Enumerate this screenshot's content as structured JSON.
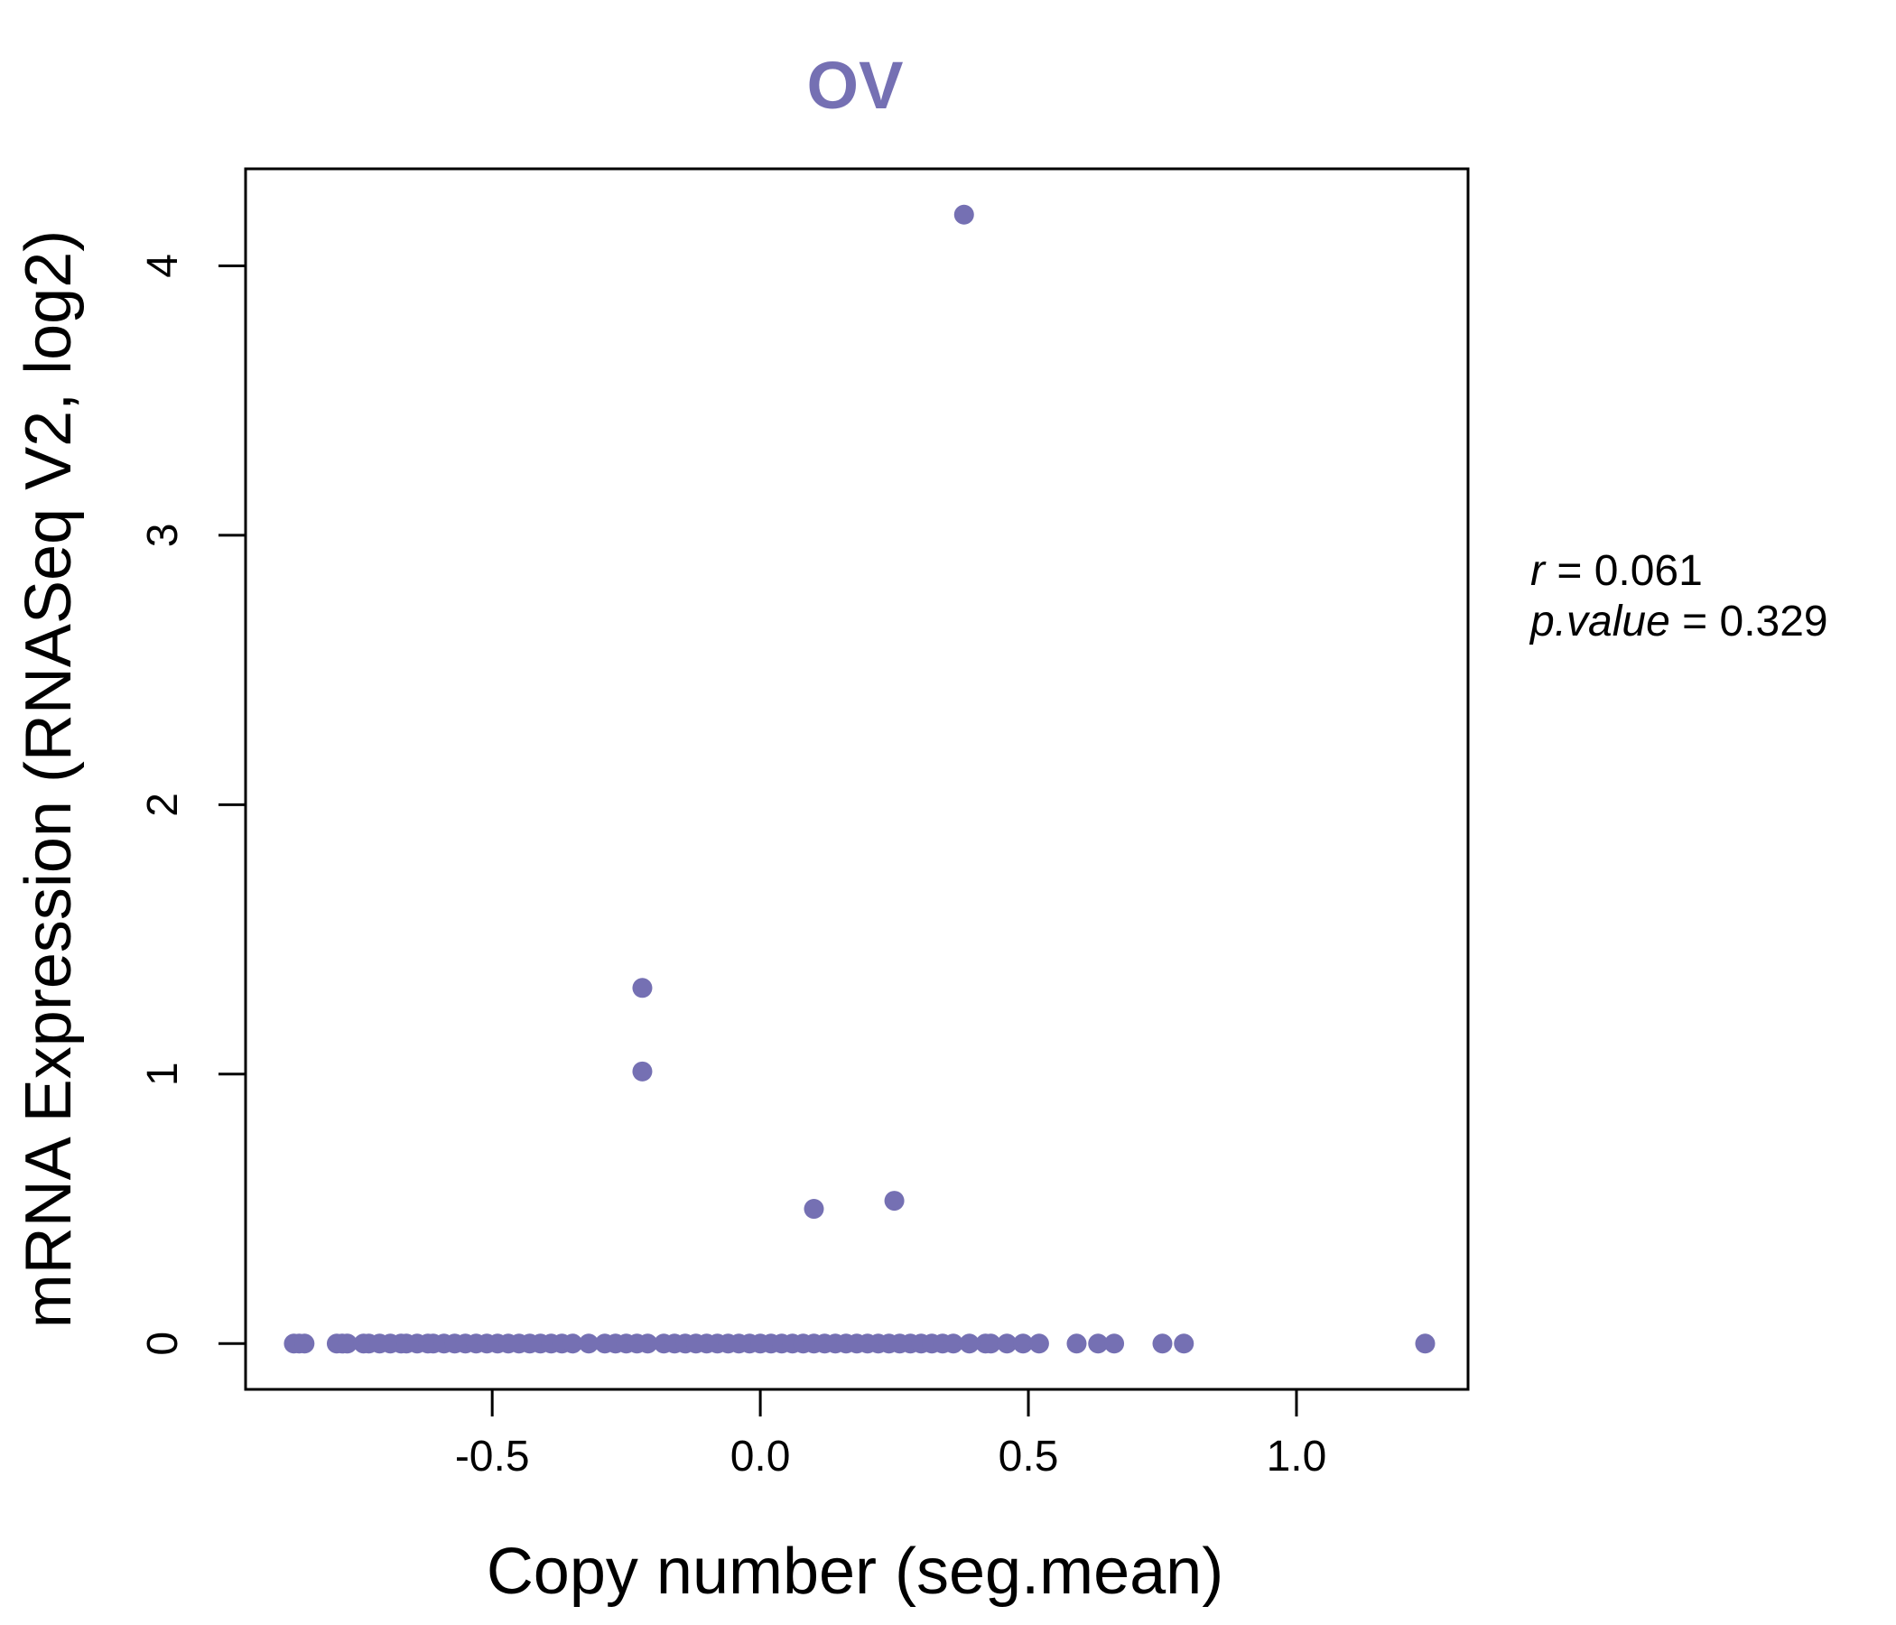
{
  "chart_data": {
    "type": "scatter",
    "title": "OV",
    "xlabel": "Copy number (seg.mean)",
    "ylabel": "mRNA Expression (RNASeq V2, log2)",
    "xlim": [
      -0.96,
      1.32
    ],
    "ylim": [
      -0.17,
      4.36
    ],
    "x_ticks": [
      -0.5,
      0.0,
      0.5,
      1.0
    ],
    "x_tick_labels": [
      "-0.5",
      "0.0",
      "0.5",
      "1.0"
    ],
    "y_ticks": [
      0,
      1,
      2,
      3,
      4
    ],
    "y_tick_labels": [
      "0",
      "1",
      "2",
      "3",
      "4"
    ],
    "grid": false,
    "color": "#7570b3",
    "stats": {
      "r_symbol": "r",
      "r_value": "0.061",
      "p_symbol": "p.value",
      "p_value": "0.329",
      "equals": "="
    },
    "points": [
      [
        0.38,
        4.19
      ],
      [
        -0.22,
        1.32
      ],
      [
        -0.22,
        1.01
      ],
      [
        0.1,
        0.5
      ],
      [
        0.25,
        0.53
      ],
      [
        -0.87,
        0
      ],
      [
        -0.86,
        0
      ],
      [
        -0.85,
        0
      ],
      [
        -0.79,
        0
      ],
      [
        -0.78,
        0
      ],
      [
        -0.77,
        0
      ],
      [
        -0.74,
        0
      ],
      [
        -0.73,
        0
      ],
      [
        -0.71,
        0
      ],
      [
        -0.69,
        0
      ],
      [
        -0.67,
        0
      ],
      [
        -0.66,
        0
      ],
      [
        -0.64,
        0
      ],
      [
        -0.62,
        0
      ],
      [
        -0.61,
        0
      ],
      [
        -0.59,
        0
      ],
      [
        -0.57,
        0
      ],
      [
        -0.55,
        0
      ],
      [
        -0.53,
        0
      ],
      [
        -0.51,
        0
      ],
      [
        -0.49,
        0
      ],
      [
        -0.47,
        0
      ],
      [
        -0.45,
        0
      ],
      [
        -0.43,
        0
      ],
      [
        -0.41,
        0
      ],
      [
        -0.39,
        0
      ],
      [
        -0.37,
        0
      ],
      [
        -0.35,
        0
      ],
      [
        -0.32,
        0
      ],
      [
        -0.29,
        0
      ],
      [
        -0.27,
        0
      ],
      [
        -0.25,
        0
      ],
      [
        -0.23,
        0
      ],
      [
        -0.21,
        0
      ],
      [
        -0.18,
        0
      ],
      [
        -0.16,
        0
      ],
      [
        -0.14,
        0
      ],
      [
        -0.12,
        0
      ],
      [
        -0.1,
        0
      ],
      [
        -0.08,
        0
      ],
      [
        -0.06,
        0
      ],
      [
        -0.04,
        0
      ],
      [
        -0.02,
        0
      ],
      [
        0.0,
        0
      ],
      [
        0.02,
        0
      ],
      [
        0.04,
        0
      ],
      [
        0.06,
        0
      ],
      [
        0.08,
        0
      ],
      [
        0.1,
        0
      ],
      [
        0.12,
        0
      ],
      [
        0.14,
        0
      ],
      [
        0.16,
        0
      ],
      [
        0.18,
        0
      ],
      [
        0.2,
        0
      ],
      [
        0.22,
        0
      ],
      [
        0.24,
        0
      ],
      [
        0.26,
        0
      ],
      [
        0.28,
        0
      ],
      [
        0.3,
        0
      ],
      [
        0.32,
        0
      ],
      [
        0.34,
        0
      ],
      [
        0.36,
        0
      ],
      [
        0.39,
        0
      ],
      [
        0.42,
        0
      ],
      [
        0.43,
        0
      ],
      [
        0.46,
        0
      ],
      [
        0.49,
        0
      ],
      [
        0.52,
        0
      ],
      [
        0.59,
        0
      ],
      [
        0.63,
        0
      ],
      [
        0.66,
        0
      ],
      [
        0.75,
        0
      ],
      [
        0.79,
        0
      ],
      [
        1.24,
        0
      ]
    ]
  }
}
